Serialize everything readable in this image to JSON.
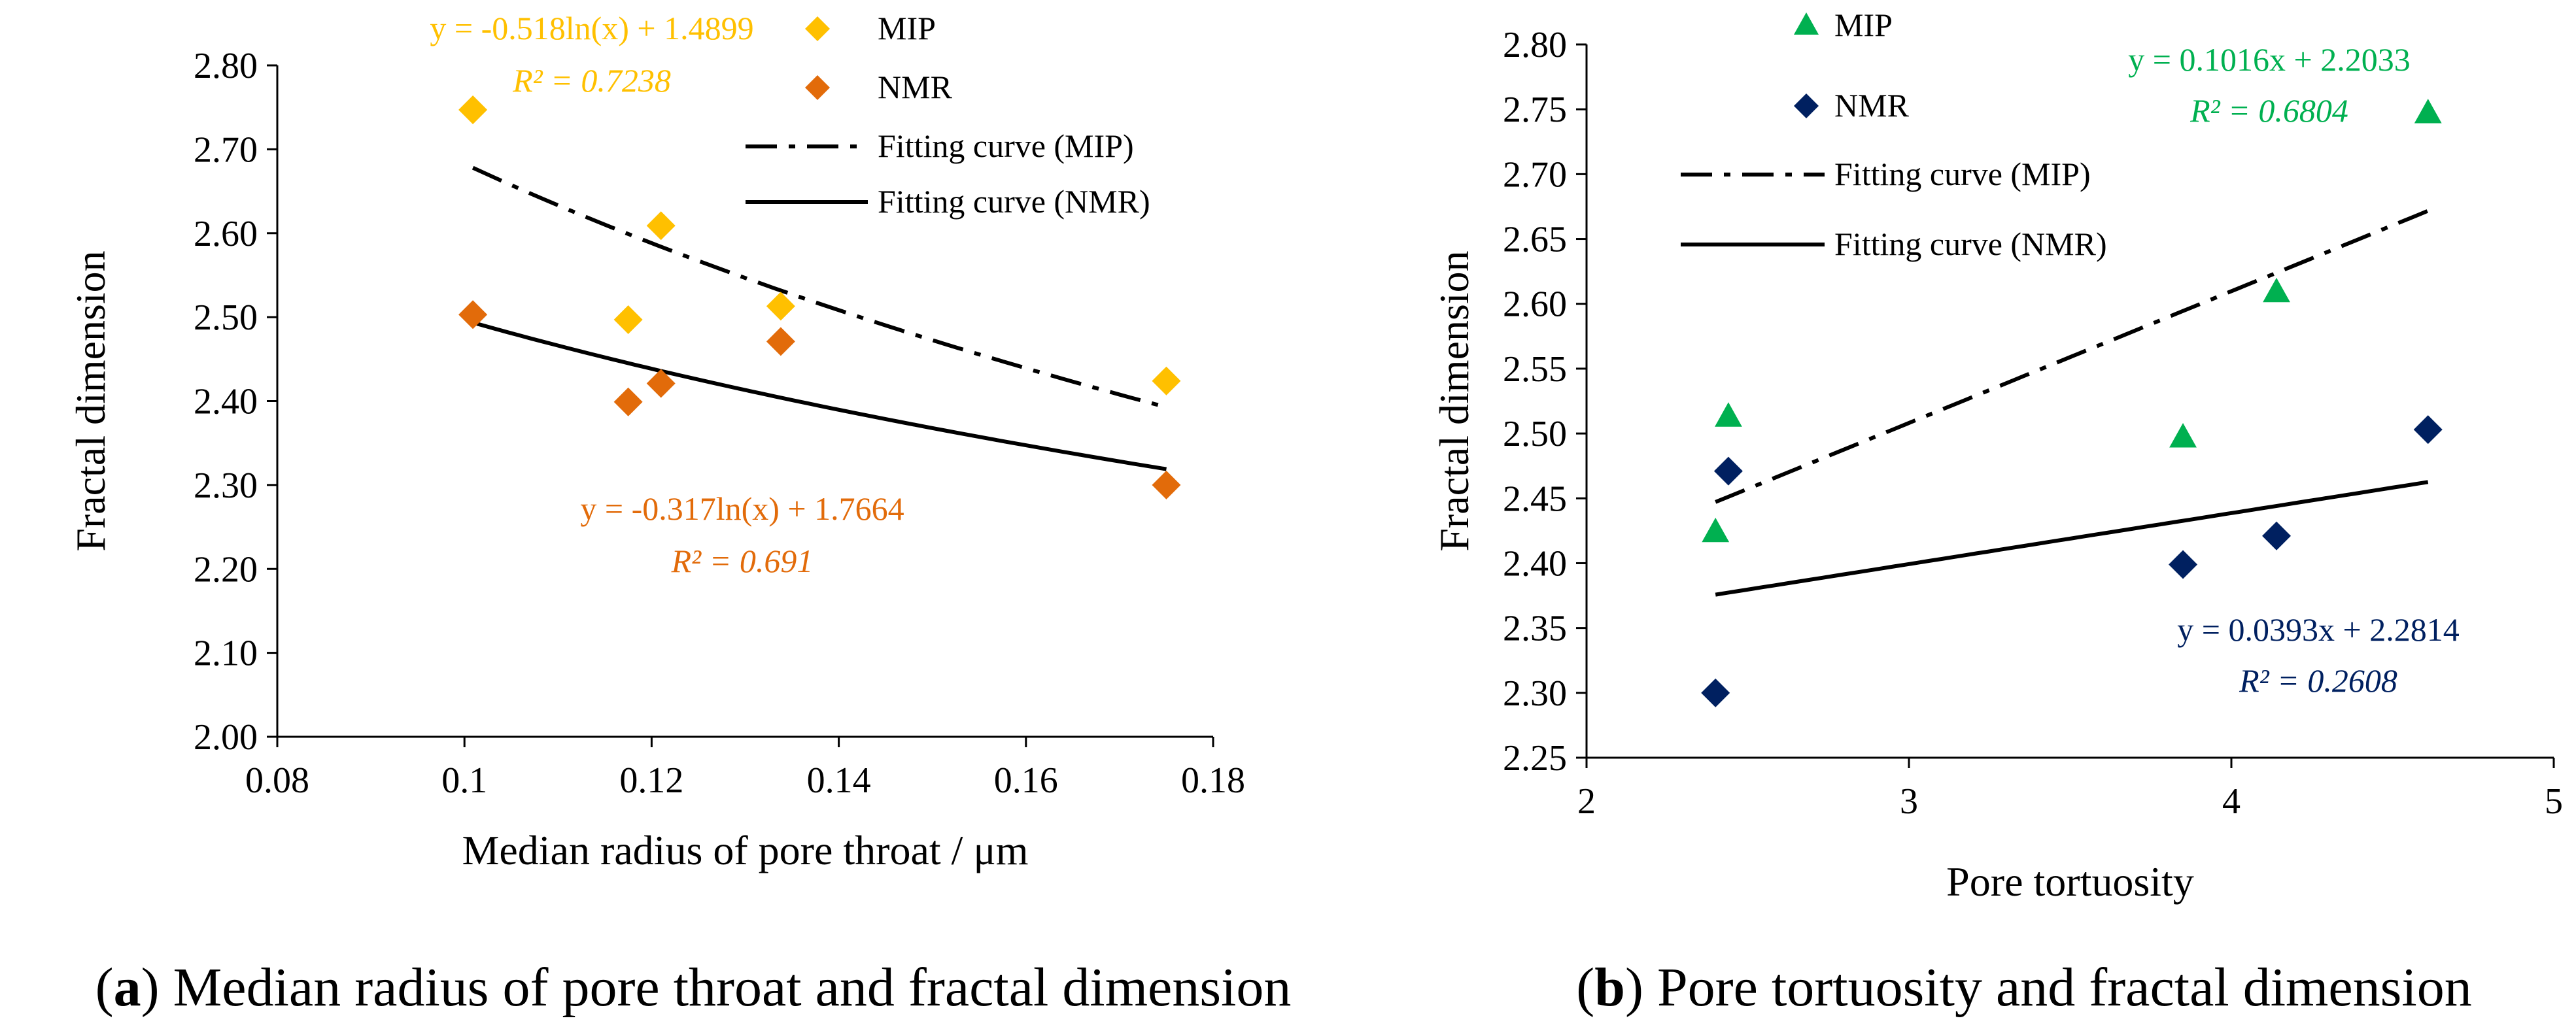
{
  "colors": {
    "mip_a": "#FFC000",
    "nmr_a": "#E26B0A",
    "mip_b": "#00B050",
    "nmr_b": "#002060",
    "line": "#000000"
  },
  "captions": {
    "a_letter": "a",
    "a_text": " Median radius of pore throat and fractal dimension",
    "b_letter": "b",
    "b_text": " Pore tortuosity and fractal dimension"
  },
  "chart_data": [
    {
      "type": "scatter",
      "id": "a",
      "xlabel": "Median radius of pore throat / μm",
      "ylabel": "Fractal dimension",
      "xlim": [
        0.08,
        0.18
      ],
      "ylim": [
        2.0,
        2.8
      ],
      "xticks": [
        0.08,
        0.1,
        0.12,
        0.14,
        0.16,
        0.18
      ],
      "xtick_labels": [
        "0.08",
        "0.1",
        "0.12",
        "0.14",
        "0.16",
        "0.18"
      ],
      "yticks": [
        2.0,
        2.1,
        2.2,
        2.3,
        2.4,
        2.5,
        2.6,
        2.7,
        2.8
      ],
      "ytick_labels": [
        "2.00",
        "2.10",
        "2.20",
        "2.30",
        "2.40",
        "2.50",
        "2.60",
        "2.70",
        "2.80"
      ],
      "series": [
        {
          "name": "MIP",
          "marker": "diamond",
          "color": "#FFC000",
          "x": [
            0.1009,
            0.1175,
            0.121,
            0.1338,
            0.175
          ],
          "y": [
            2.747,
            2.497,
            2.609,
            2.513,
            2.424
          ]
        },
        {
          "name": "NMR",
          "marker": "diamond",
          "color": "#E26B0A",
          "x": [
            0.1009,
            0.1175,
            0.121,
            0.1338,
            0.175
          ],
          "y": [
            2.503,
            2.399,
            2.421,
            2.471,
            2.3
          ]
        }
      ],
      "fits": [
        {
          "name": "Fitting curve (MIP)",
          "style": "dashdot",
          "kind": "log",
          "a": -0.518,
          "b": 1.4899,
          "x_range": [
            0.1009,
            0.175
          ]
        },
        {
          "name": "Fitting curve (NMR)",
          "style": "solid",
          "kind": "log",
          "a": -0.317,
          "b": 1.7664,
          "x_range": [
            0.1009,
            0.175
          ]
        }
      ],
      "legend": [
        "MIP",
        "NMR",
        "Fitting curve (MIP)",
        "Fitting curve (NMR)"
      ],
      "annotations": [
        {
          "line1": "y = -0.518ln(x) + 1.4899",
          "line2": "R² = 0.7238",
          "color": "#FFC000"
        },
        {
          "line1": "y = -0.317ln(x) + 1.7664",
          "line2": "R² = 0.691",
          "color": "#E26B0A"
        }
      ]
    },
    {
      "type": "scatter",
      "id": "b",
      "xlabel": "Pore tortuosity",
      "ylabel": "Fractal dimension",
      "xlim": [
        2,
        5
      ],
      "ylim": [
        2.25,
        2.8
      ],
      "xticks": [
        2,
        3,
        4,
        5
      ],
      "xtick_labels": [
        "2",
        "3",
        "4",
        "5"
      ],
      "yticks": [
        2.25,
        2.3,
        2.35,
        2.4,
        2.45,
        2.5,
        2.55,
        2.6,
        2.65,
        2.7,
        2.75,
        2.8
      ],
      "ytick_labels": [
        "2.25",
        "2.30",
        "2.35",
        "2.40",
        "2.45",
        "2.50",
        "2.55",
        "2.60",
        "2.65",
        "2.70",
        "2.75",
        "2.80"
      ],
      "series": [
        {
          "name": "MIP",
          "marker": "triangle",
          "color": "#00B050",
          "x": [
            2.4,
            2.44,
            3.85,
            4.14,
            4.61
          ],
          "y": [
            2.424,
            2.513,
            2.497,
            2.609,
            2.747
          ]
        },
        {
          "name": "NMR",
          "marker": "diamond",
          "color": "#002060",
          "x": [
            2.4,
            2.44,
            3.85,
            4.14,
            4.61
          ],
          "y": [
            2.3,
            2.471,
            2.399,
            2.421,
            2.503
          ]
        }
      ],
      "fits": [
        {
          "name": "Fitting curve (MIP)",
          "style": "dashdot",
          "kind": "linear",
          "a": 0.1016,
          "b": 2.2033,
          "x_range": [
            2.4,
            4.61
          ]
        },
        {
          "name": "Fitting curve (NMR)",
          "style": "solid",
          "kind": "linear",
          "a": 0.0393,
          "b": 2.2814,
          "x_range": [
            2.4,
            4.61
          ]
        }
      ],
      "legend": [
        "MIP",
        "NMR",
        "Fitting curve (MIP)",
        "Fitting curve (NMR)"
      ],
      "annotations": [
        {
          "line1": "y = 0.1016x + 2.2033",
          "line2": "R² = 0.6804",
          "color": "#00B050"
        },
        {
          "line1": "y = 0.0393x + 2.2814",
          "line2": "R² = 0.2608",
          "color": "#002060"
        }
      ]
    }
  ]
}
